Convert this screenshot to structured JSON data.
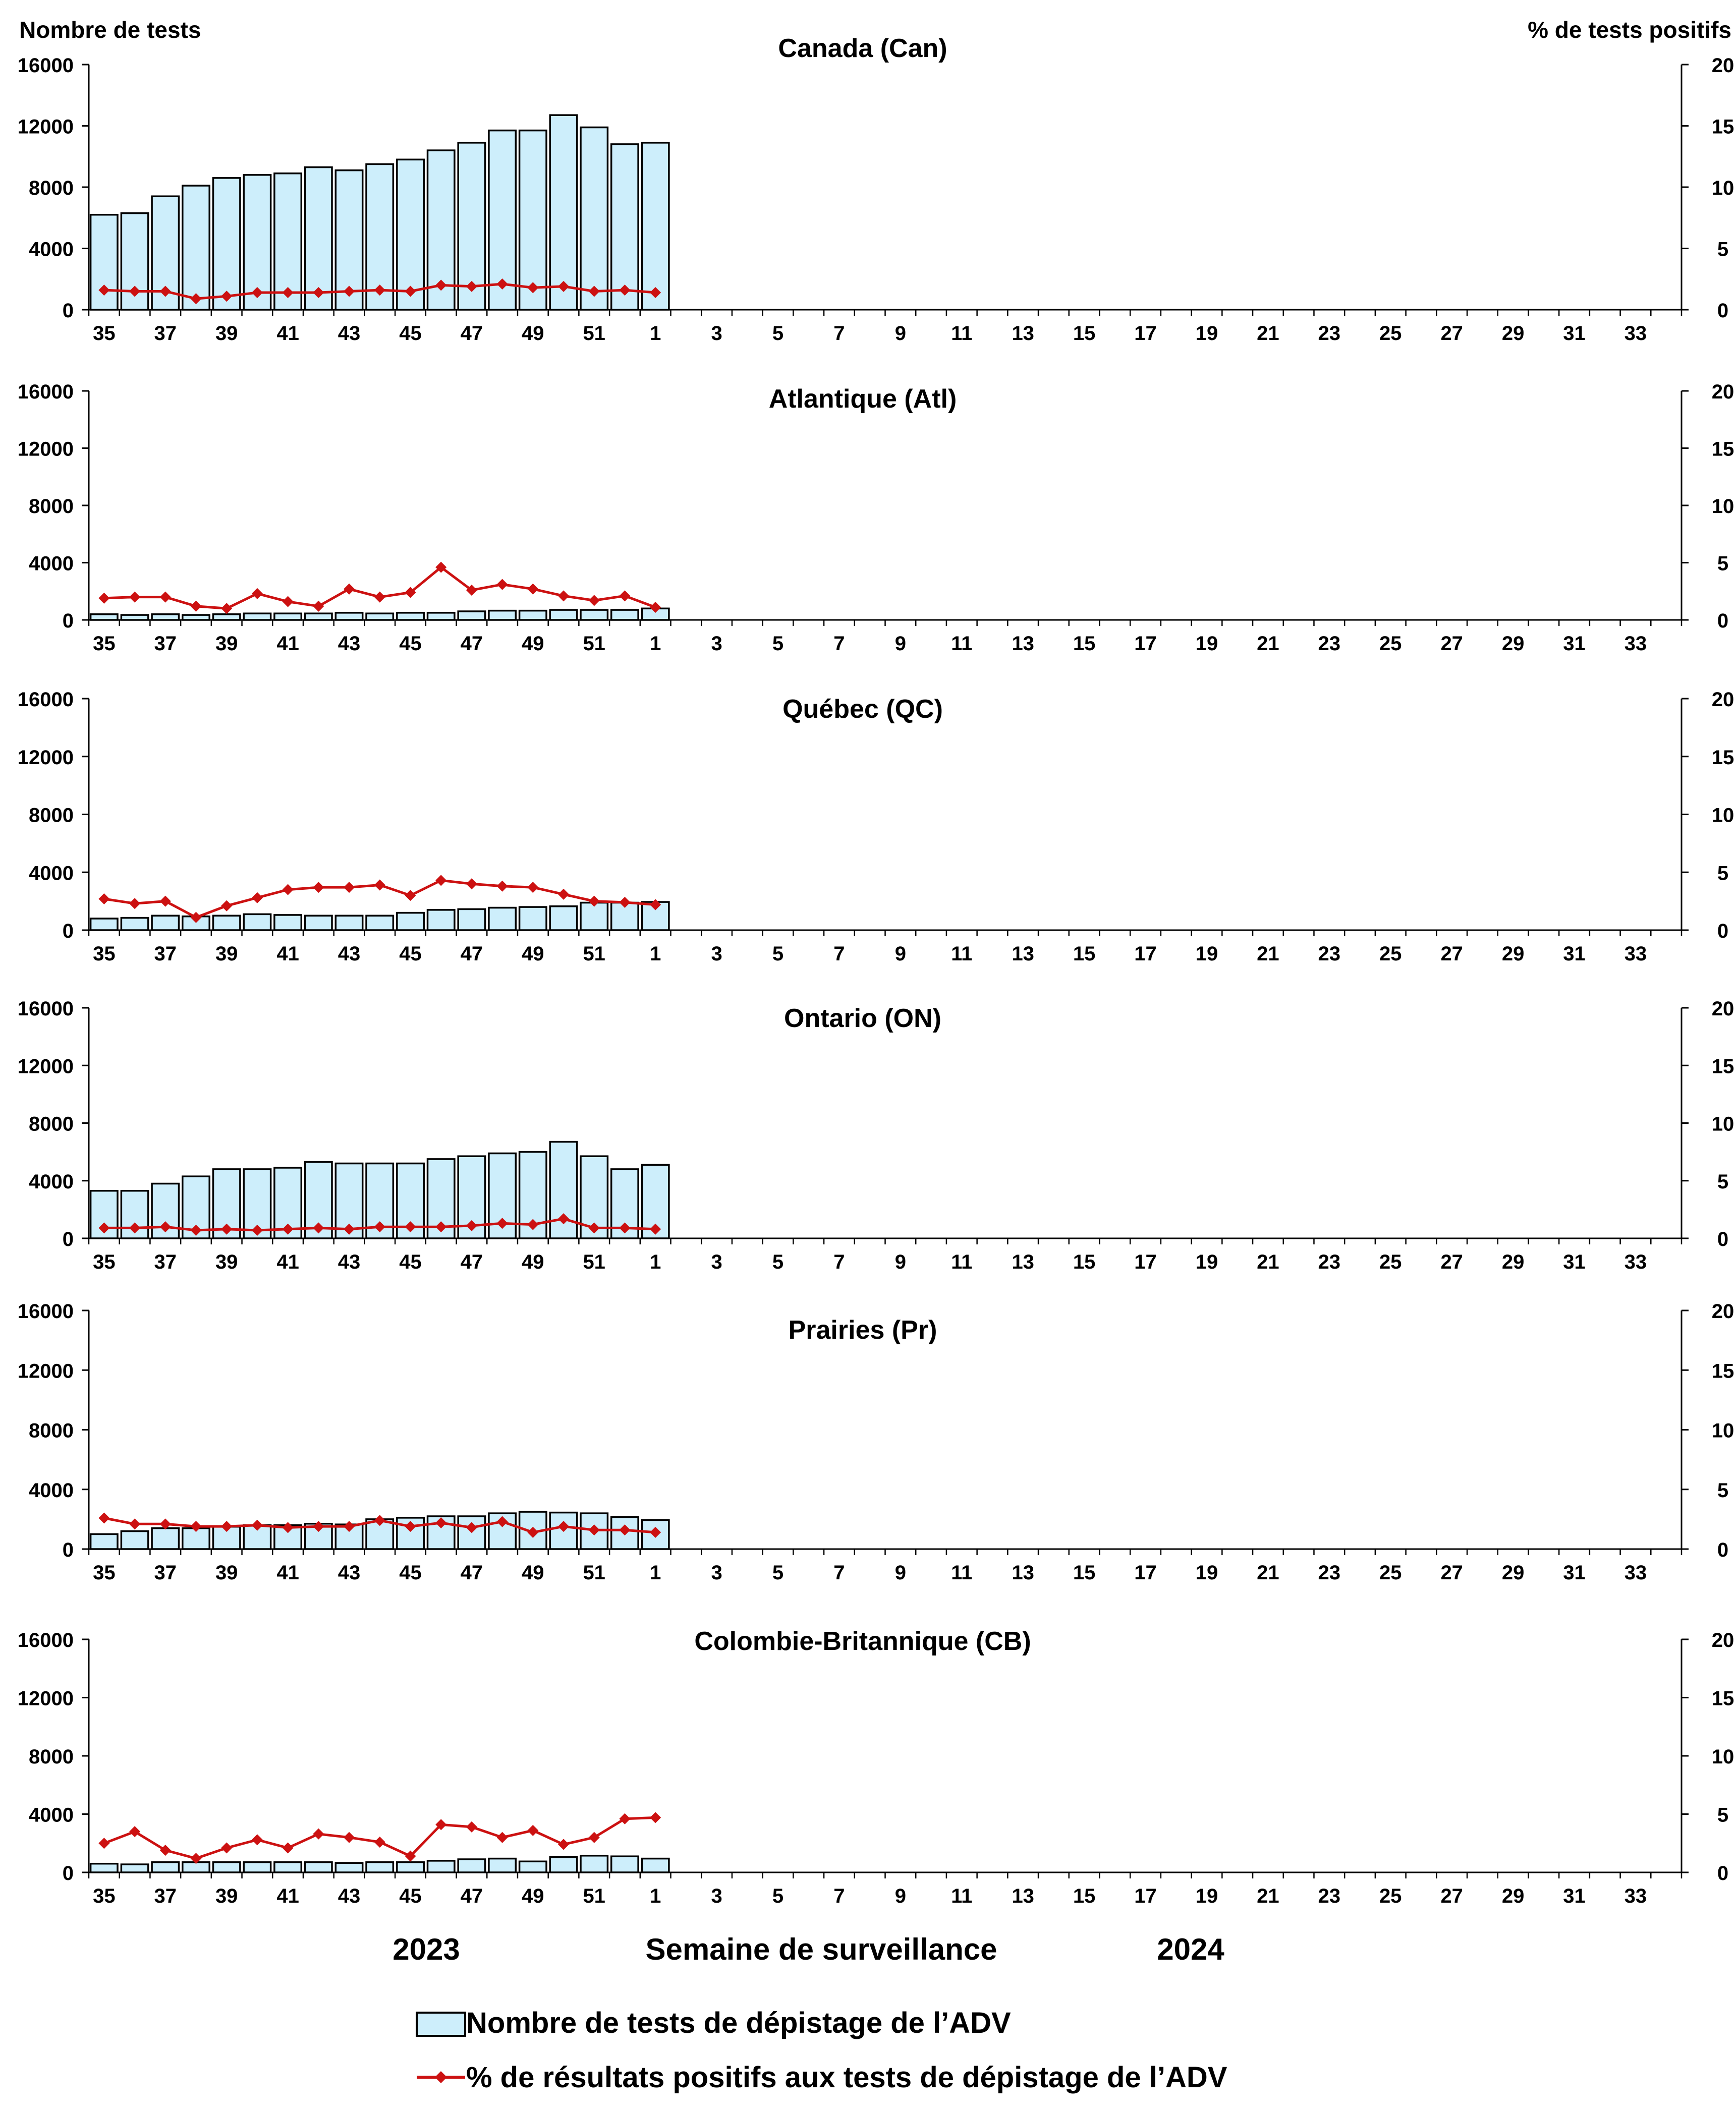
{
  "left_axis_title": "Nombre de tests",
  "right_axis_title": "% de tests positifs",
  "x_axis_title": "Semaine de surveillance",
  "season_labels": [
    "2023",
    "2024"
  ],
  "legend": {
    "bars": "Nombre de tests de dépistage de l’ADV",
    "line": "% de résultats positifs aux tests de dépistage de l’ADV"
  },
  "colors": {
    "bar_fill": "#cdeefb",
    "bar_stroke": "#000000",
    "line": "#cc1111",
    "axis": "#000000"
  },
  "chart_data": [
    {
      "type": "bar+line",
      "title": "Canada (Can)",
      "weeks": [
        35,
        36,
        37,
        38,
        39,
        40,
        41,
        42,
        43,
        44,
        45,
        46,
        47,
        48,
        49,
        50,
        51,
        52,
        1
      ],
      "x_tick_labels": [
        "35",
        "37",
        "39",
        "41",
        "43",
        "45",
        "47",
        "49",
        "51",
        "1",
        "3",
        "5",
        "7",
        "9",
        "11",
        "13",
        "15",
        "17",
        "19",
        "21",
        "23",
        "25",
        "27",
        "29",
        "31",
        "33"
      ],
      "ylim": [
        0,
        16000
      ],
      "y_ticks": [
        0,
        4000,
        8000,
        12000,
        16000
      ],
      "y2lim": [
        0,
        20
      ],
      "y2_ticks": [
        0,
        5,
        10,
        15,
        20
      ],
      "tests": [
        6200,
        6300,
        7400,
        8100,
        8600,
        8800,
        8900,
        9300,
        9100,
        9500,
        9800,
        10400,
        10900,
        11700,
        11700,
        12700,
        11900,
        10800,
        10900
      ],
      "pct_positive": [
        1.6,
        1.5,
        1.5,
        0.9,
        1.1,
        1.4,
        1.4,
        1.4,
        1.5,
        1.6,
        1.5,
        2.0,
        1.9,
        2.1,
        1.8,
        1.9,
        1.5,
        1.6,
        1.4
      ]
    },
    {
      "type": "bar+line",
      "title": "Atlantique (Atl)",
      "weeks": [
        35,
        36,
        37,
        38,
        39,
        40,
        41,
        42,
        43,
        44,
        45,
        46,
        47,
        48,
        49,
        50,
        51,
        52,
        1
      ],
      "x_tick_labels": [
        "35",
        "37",
        "39",
        "41",
        "43",
        "45",
        "47",
        "49",
        "51",
        "1",
        "3",
        "5",
        "7",
        "9",
        "11",
        "13",
        "15",
        "17",
        "19",
        "21",
        "23",
        "25",
        "27",
        "29",
        "31",
        "33"
      ],
      "ylim": [
        0,
        16000
      ],
      "y_ticks": [
        0,
        4000,
        8000,
        12000,
        16000
      ],
      "y2lim": [
        0,
        20
      ],
      "y2_ticks": [
        0,
        5,
        10,
        15,
        20
      ],
      "tests": [
        400,
        350,
        400,
        350,
        400,
        450,
        450,
        450,
        500,
        450,
        500,
        500,
        600,
        650,
        650,
        700,
        700,
        700,
        800
      ],
      "pct_positive": [
        1.9,
        2.0,
        2.0,
        1.2,
        1.0,
        2.3,
        1.6,
        1.2,
        2.7,
        2.0,
        2.4,
        4.6,
        2.6,
        3.1,
        2.7,
        2.1,
        1.7,
        2.1,
        1.1
      ]
    },
    {
      "type": "bar+line",
      "title": "Québec (QC)",
      "weeks": [
        35,
        36,
        37,
        38,
        39,
        40,
        41,
        42,
        43,
        44,
        45,
        46,
        47,
        48,
        49,
        50,
        51,
        52,
        1
      ],
      "x_tick_labels": [
        "35",
        "37",
        "39",
        "41",
        "43",
        "45",
        "47",
        "49",
        "51",
        "1",
        "3",
        "5",
        "7",
        "9",
        "11",
        "13",
        "15",
        "17",
        "19",
        "21",
        "23",
        "25",
        "27",
        "29",
        "31",
        "33"
      ],
      "ylim": [
        0,
        16000
      ],
      "y_ticks": [
        0,
        4000,
        8000,
        12000,
        16000
      ],
      "y2lim": [
        0,
        20
      ],
      "y2_ticks": [
        0,
        5,
        10,
        15,
        20
      ],
      "tests": [
        800,
        850,
        1000,
        950,
        1000,
        1100,
        1050,
        1000,
        1000,
        1000,
        1200,
        1400,
        1450,
        1550,
        1600,
        1650,
        1900,
        1900,
        1950
      ],
      "pct_positive": [
        2.7,
        2.3,
        2.5,
        1.1,
        2.1,
        2.8,
        3.5,
        3.7,
        3.7,
        3.9,
        3.0,
        4.3,
        4.0,
        3.8,
        3.7,
        3.1,
        2.5,
        2.4,
        2.2
      ]
    },
    {
      "type": "bar+line",
      "title": "Ontario (ON)",
      "weeks": [
        35,
        36,
        37,
        38,
        39,
        40,
        41,
        42,
        43,
        44,
        45,
        46,
        47,
        48,
        49,
        50,
        51,
        52,
        1
      ],
      "x_tick_labels": [
        "35",
        "37",
        "39",
        "41",
        "43",
        "45",
        "47",
        "49",
        "51",
        "1",
        "3",
        "5",
        "7",
        "9",
        "11",
        "13",
        "15",
        "17",
        "19",
        "21",
        "23",
        "25",
        "27",
        "29",
        "31",
        "33"
      ],
      "ylim": [
        0,
        16000
      ],
      "y_ticks": [
        0,
        4000,
        8000,
        12000,
        16000
      ],
      "y2lim": [
        0,
        20
      ],
      "y2_ticks": [
        0,
        5,
        10,
        15,
        20
      ],
      "tests": [
        3300,
        3300,
        3800,
        4300,
        4800,
        4800,
        4900,
        5300,
        5200,
        5200,
        5200,
        5500,
        5700,
        5900,
        6000,
        6700,
        5700,
        4800,
        5100
      ],
      "pct_positive": [
        0.9,
        0.9,
        1.0,
        0.7,
        0.8,
        0.7,
        0.8,
        0.9,
        0.8,
        1.0,
        1.0,
        1.0,
        1.1,
        1.3,
        1.2,
        1.7,
        0.9,
        0.9,
        0.8
      ]
    },
    {
      "type": "bar+line",
      "title": "Prairies (Pr)",
      "weeks": [
        35,
        36,
        37,
        38,
        39,
        40,
        41,
        42,
        43,
        44,
        45,
        46,
        47,
        48,
        49,
        50,
        51,
        52,
        1
      ],
      "x_tick_labels": [
        "35",
        "37",
        "39",
        "41",
        "43",
        "45",
        "47",
        "49",
        "51",
        "1",
        "3",
        "5",
        "7",
        "9",
        "11",
        "13",
        "15",
        "17",
        "19",
        "21",
        "23",
        "25",
        "27",
        "29",
        "31",
        "33"
      ],
      "ylim": [
        0,
        16000
      ],
      "y_ticks": [
        0,
        4000,
        8000,
        12000,
        16000
      ],
      "y2lim": [
        0,
        20
      ],
      "y2_ticks": [
        0,
        5,
        10,
        15,
        20
      ],
      "tests": [
        1000,
        1200,
        1400,
        1400,
        1500,
        1600,
        1600,
        1700,
        1650,
        2000,
        2100,
        2200,
        2200,
        2400,
        2500,
        2450,
        2400,
        2150,
        1950
      ],
      "pct_positive": [
        2.6,
        2.1,
        2.1,
        1.9,
        1.9,
        2.0,
        1.8,
        1.9,
        1.9,
        2.4,
        1.9,
        2.2,
        1.8,
        2.3,
        1.4,
        1.9,
        1.6,
        1.6,
        1.4
      ]
    },
    {
      "type": "bar+line",
      "title": "Colombie-Britannique (CB)",
      "weeks": [
        35,
        36,
        37,
        38,
        39,
        40,
        41,
        42,
        43,
        44,
        45,
        46,
        47,
        48,
        49,
        50,
        51,
        52,
        1
      ],
      "x_tick_labels": [
        "35",
        "37",
        "39",
        "41",
        "43",
        "45",
        "47",
        "49",
        "51",
        "1",
        "3",
        "5",
        "7",
        "9",
        "11",
        "13",
        "15",
        "17",
        "19",
        "21",
        "23",
        "25",
        "27",
        "29",
        "31",
        "33"
      ],
      "ylim": [
        0,
        16000
      ],
      "y_ticks": [
        0,
        4000,
        8000,
        12000,
        16000
      ],
      "y2lim": [
        0,
        20
      ],
      "y2_ticks": [
        0,
        5,
        10,
        15,
        20
      ],
      "tests": [
        600,
        550,
        700,
        700,
        700,
        700,
        700,
        700,
        650,
        700,
        700,
        800,
        900,
        950,
        750,
        1050,
        1150,
        1100,
        950
      ],
      "pct_positive": [
        2.5,
        3.5,
        1.9,
        1.2,
        2.1,
        2.8,
        2.1,
        3.3,
        3.0,
        2.6,
        1.4,
        4.1,
        3.9,
        3.0,
        3.6,
        2.4,
        3.0,
        4.6,
        4.7
      ]
    }
  ]
}
